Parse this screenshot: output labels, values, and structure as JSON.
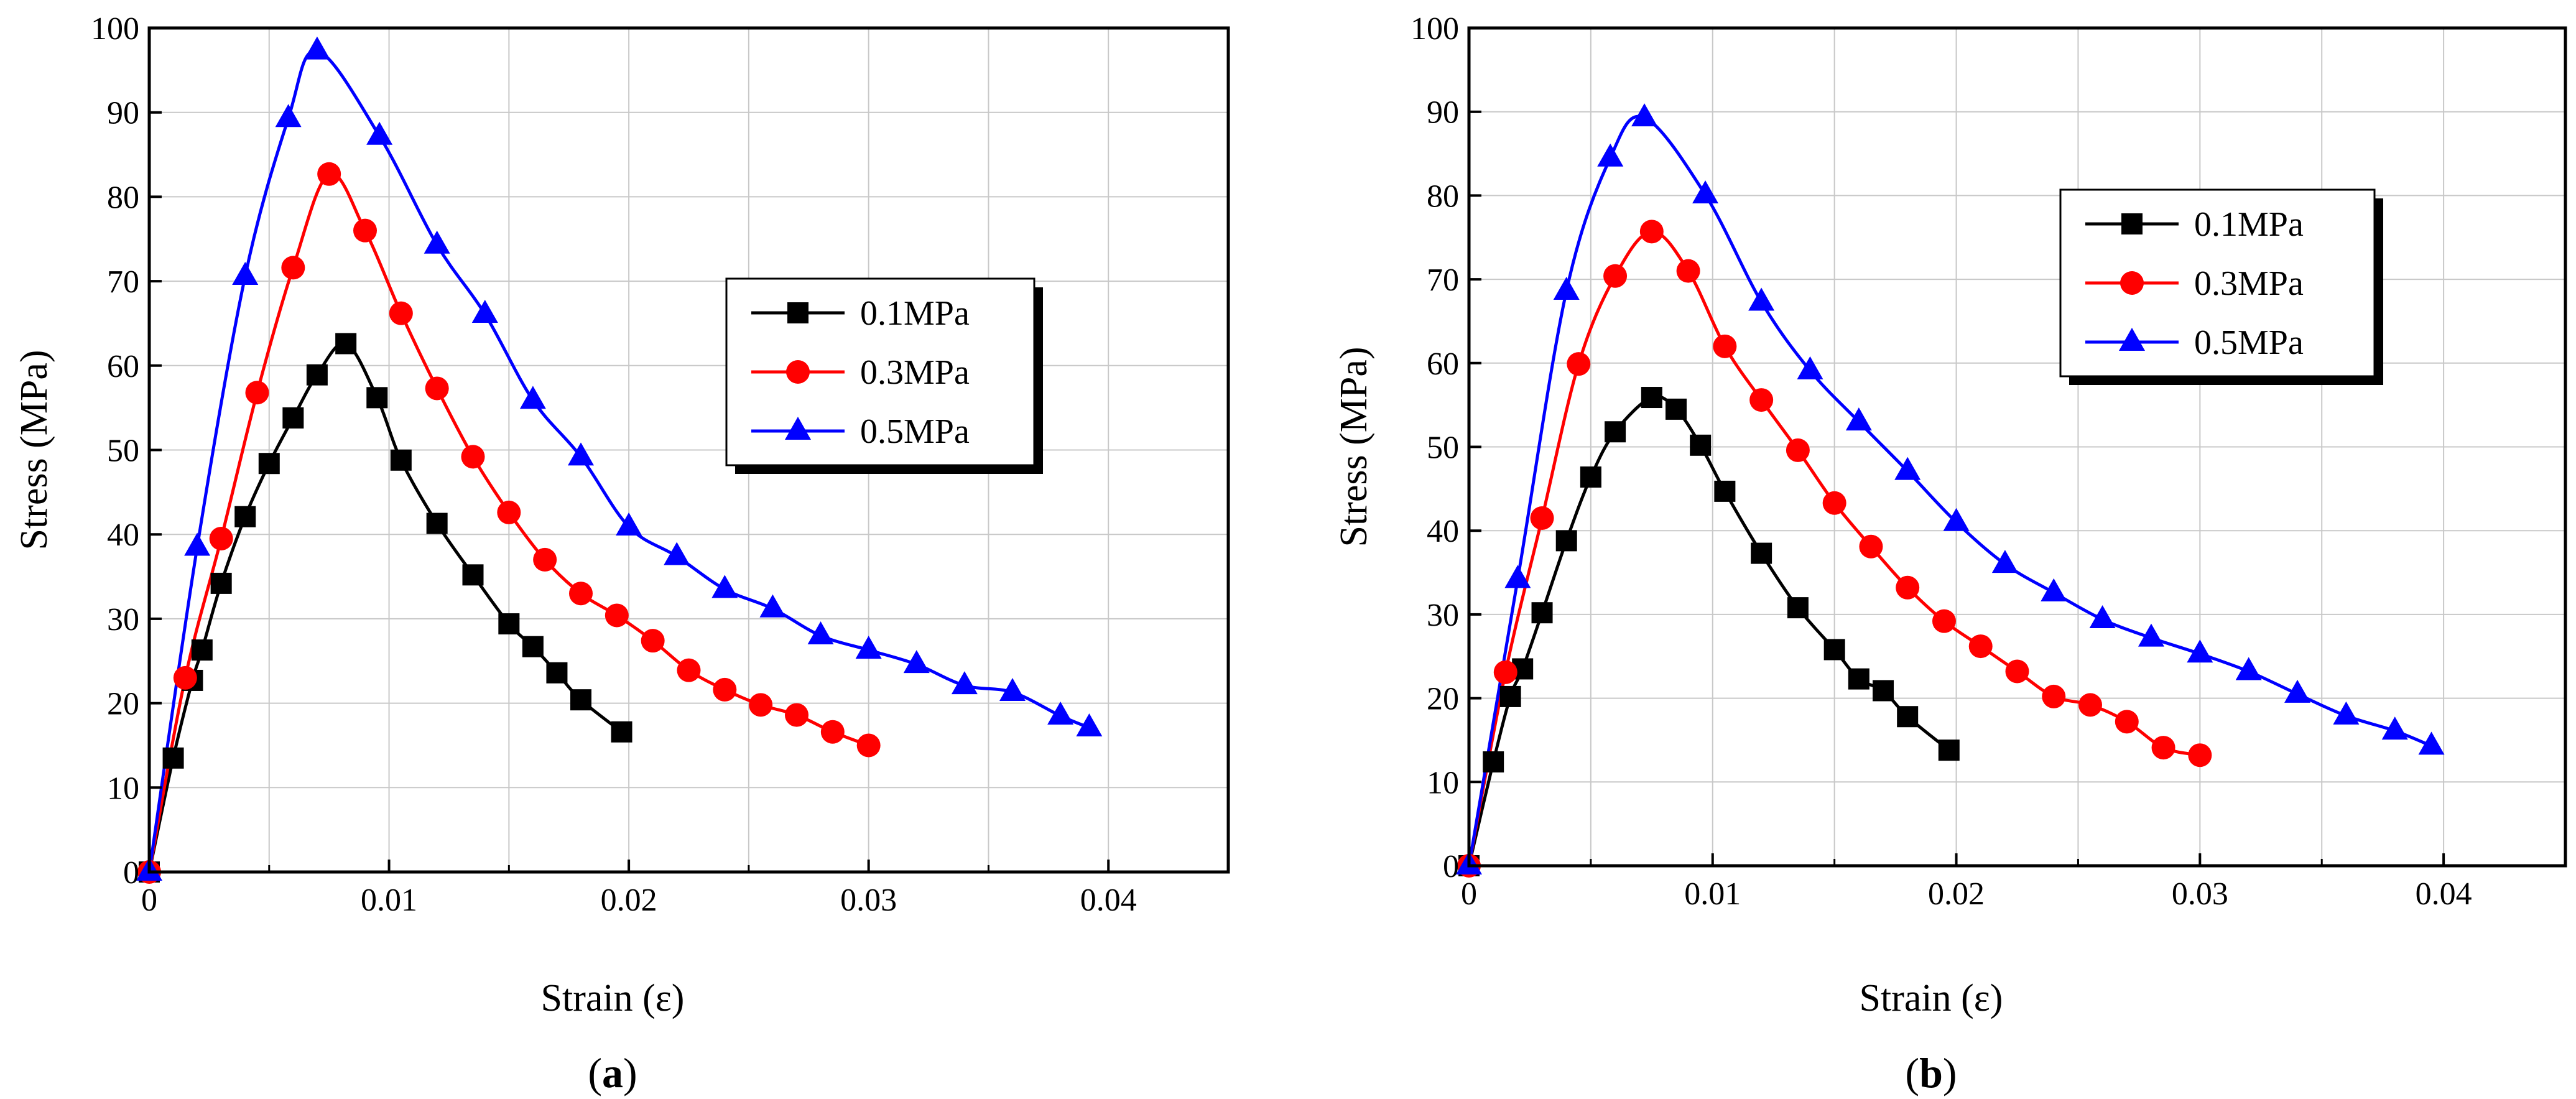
{
  "chart_data": [
    {
      "type": "line",
      "panel_label": "(a)",
      "xlabel": "Strain (ε)",
      "ylabel": "Stress (MPa)",
      "xlim": [
        0,
        0.045
      ],
      "ylim": [
        0,
        100
      ],
      "xticks": [
        0,
        0.01,
        0.02,
        0.03,
        0.04
      ],
      "xtick_labels": [
        "0",
        "0.01",
        "0.02",
        "0.03",
        "0.04"
      ],
      "yticks": [
        0,
        10,
        20,
        30,
        40,
        50,
        60,
        70,
        80,
        90,
        100
      ],
      "ytick_labels": [
        "0",
        "10",
        "20",
        "30",
        "40",
        "50",
        "60",
        "70",
        "80",
        "90",
        "100"
      ],
      "grid": true,
      "legend": "center-right",
      "series": [
        {
          "name": "0.1MPa",
          "color": "#000000",
          "marker": "square",
          "x": [
            0,
            0.001,
            0.0018,
            0.0022,
            0.003,
            0.004,
            0.005,
            0.006,
            0.007,
            0.0082,
            0.0095,
            0.0105,
            0.012,
            0.0135,
            0.015,
            0.016,
            0.017,
            0.018,
            0.0197
          ],
          "y": [
            0,
            13.5,
            22.7,
            26.3,
            34.2,
            42.1,
            48.4,
            53.8,
            58.9,
            62.6,
            56.2,
            48.8,
            41.3,
            35.2,
            29.4,
            26.7,
            23.6,
            20.4,
            16.6
          ]
        },
        {
          "name": "0.3MPa",
          "color": "#ff0000",
          "marker": "circle",
          "x": [
            0,
            0.0015,
            0.003,
            0.0045,
            0.006,
            0.0075,
            0.009,
            0.0105,
            0.012,
            0.0135,
            0.015,
            0.0165,
            0.018,
            0.0195,
            0.021,
            0.0225,
            0.024,
            0.0255,
            0.027,
            0.0285,
            0.03
          ],
          "y": [
            0,
            23,
            39.5,
            56.8,
            71.6,
            82.7,
            76,
            66.2,
            57.3,
            49.2,
            42.6,
            37,
            33,
            30.4,
            27.4,
            23.9,
            21.6,
            19.8,
            18.6,
            16.6,
            15
          ]
        },
        {
          "name": "0.5MPa",
          "color": "#0000ff",
          "marker": "triangle",
          "x": [
            0,
            0.002,
            0.004,
            0.0058,
            0.007,
            0.0096,
            0.012,
            0.014,
            0.016,
            0.018,
            0.02,
            0.022,
            0.024,
            0.026,
            0.028,
            0.03,
            0.032,
            0.034,
            0.036,
            0.038,
            0.0392
          ],
          "y": [
            0,
            38.5,
            70.6,
            89.3,
            97.3,
            87.2,
            74.3,
            66.1,
            55.9,
            49.2,
            40.9,
            37.4,
            33.5,
            31.2,
            28,
            26.3,
            24.6,
            22.1,
            21.3,
            18.5,
            17.1
          ]
        }
      ]
    },
    {
      "type": "line",
      "panel_label": "(b)",
      "xlabel": "Strain (ε)",
      "ylabel": "Stress (MPa)",
      "xlim": [
        0,
        0.045
      ],
      "ylim": [
        0,
        100
      ],
      "xticks": [
        0,
        0.01,
        0.02,
        0.03,
        0.04
      ],
      "xtick_labels": [
        "0",
        "0.01",
        "0.02",
        "0.03",
        "0.04"
      ],
      "yticks": [
        0,
        10,
        20,
        30,
        40,
        50,
        60,
        70,
        80,
        90,
        100
      ],
      "ytick_labels": [
        "0",
        "10",
        "20",
        "30",
        "40",
        "50",
        "60",
        "70",
        "80",
        "90",
        "100"
      ],
      "grid": true,
      "legend": "top-right",
      "series": [
        {
          "name": "0.1MPa",
          "color": "#000000",
          "marker": "square",
          "x": [
            0,
            0.001,
            0.0017,
            0.0022,
            0.003,
            0.004,
            0.005,
            0.006,
            0.0075,
            0.0085,
            0.0095,
            0.0105,
            0.012,
            0.0135,
            0.015,
            0.016,
            0.017,
            0.018,
            0.0197
          ],
          "y": [
            0,
            12.4,
            20.2,
            23.5,
            30.2,
            38.8,
            46.4,
            51.8,
            55.9,
            54.5,
            50.2,
            44.7,
            37.3,
            30.8,
            25.8,
            22.3,
            20.9,
            17.8,
            13.8
          ]
        },
        {
          "name": "0.3MPa",
          "color": "#ff0000",
          "marker": "circle",
          "x": [
            0,
            0.0015,
            0.003,
            0.0045,
            0.006,
            0.0075,
            0.009,
            0.0105,
            0.012,
            0.0135,
            0.015,
            0.0165,
            0.018,
            0.0195,
            0.021,
            0.0225,
            0.024,
            0.0255,
            0.027,
            0.0285,
            0.03
          ],
          "y": [
            0,
            23.1,
            41.5,
            59.9,
            70.4,
            75.7,
            71,
            62,
            55.6,
            49.6,
            43.3,
            38.1,
            33.2,
            29.2,
            26.2,
            23.2,
            20.2,
            19.2,
            17.2,
            14.1,
            13.2
          ]
        },
        {
          "name": "0.5MPa",
          "color": "#0000ff",
          "marker": "triangle",
          "x": [
            0,
            0.002,
            0.004,
            0.0058,
            0.0072,
            0.0097,
            0.012,
            0.014,
            0.016,
            0.018,
            0.02,
            0.022,
            0.024,
            0.026,
            0.028,
            0.03,
            0.032,
            0.034,
            0.036,
            0.038,
            0.0395
          ],
          "y": [
            0,
            34.2,
            68.6,
            84.5,
            89.3,
            80.1,
            67.3,
            59.1,
            53,
            47.1,
            41,
            36,
            32.6,
            29.4,
            27.2,
            25.3,
            23.2,
            20.5,
            17.9,
            16.1,
            14.3
          ]
        }
      ]
    }
  ]
}
